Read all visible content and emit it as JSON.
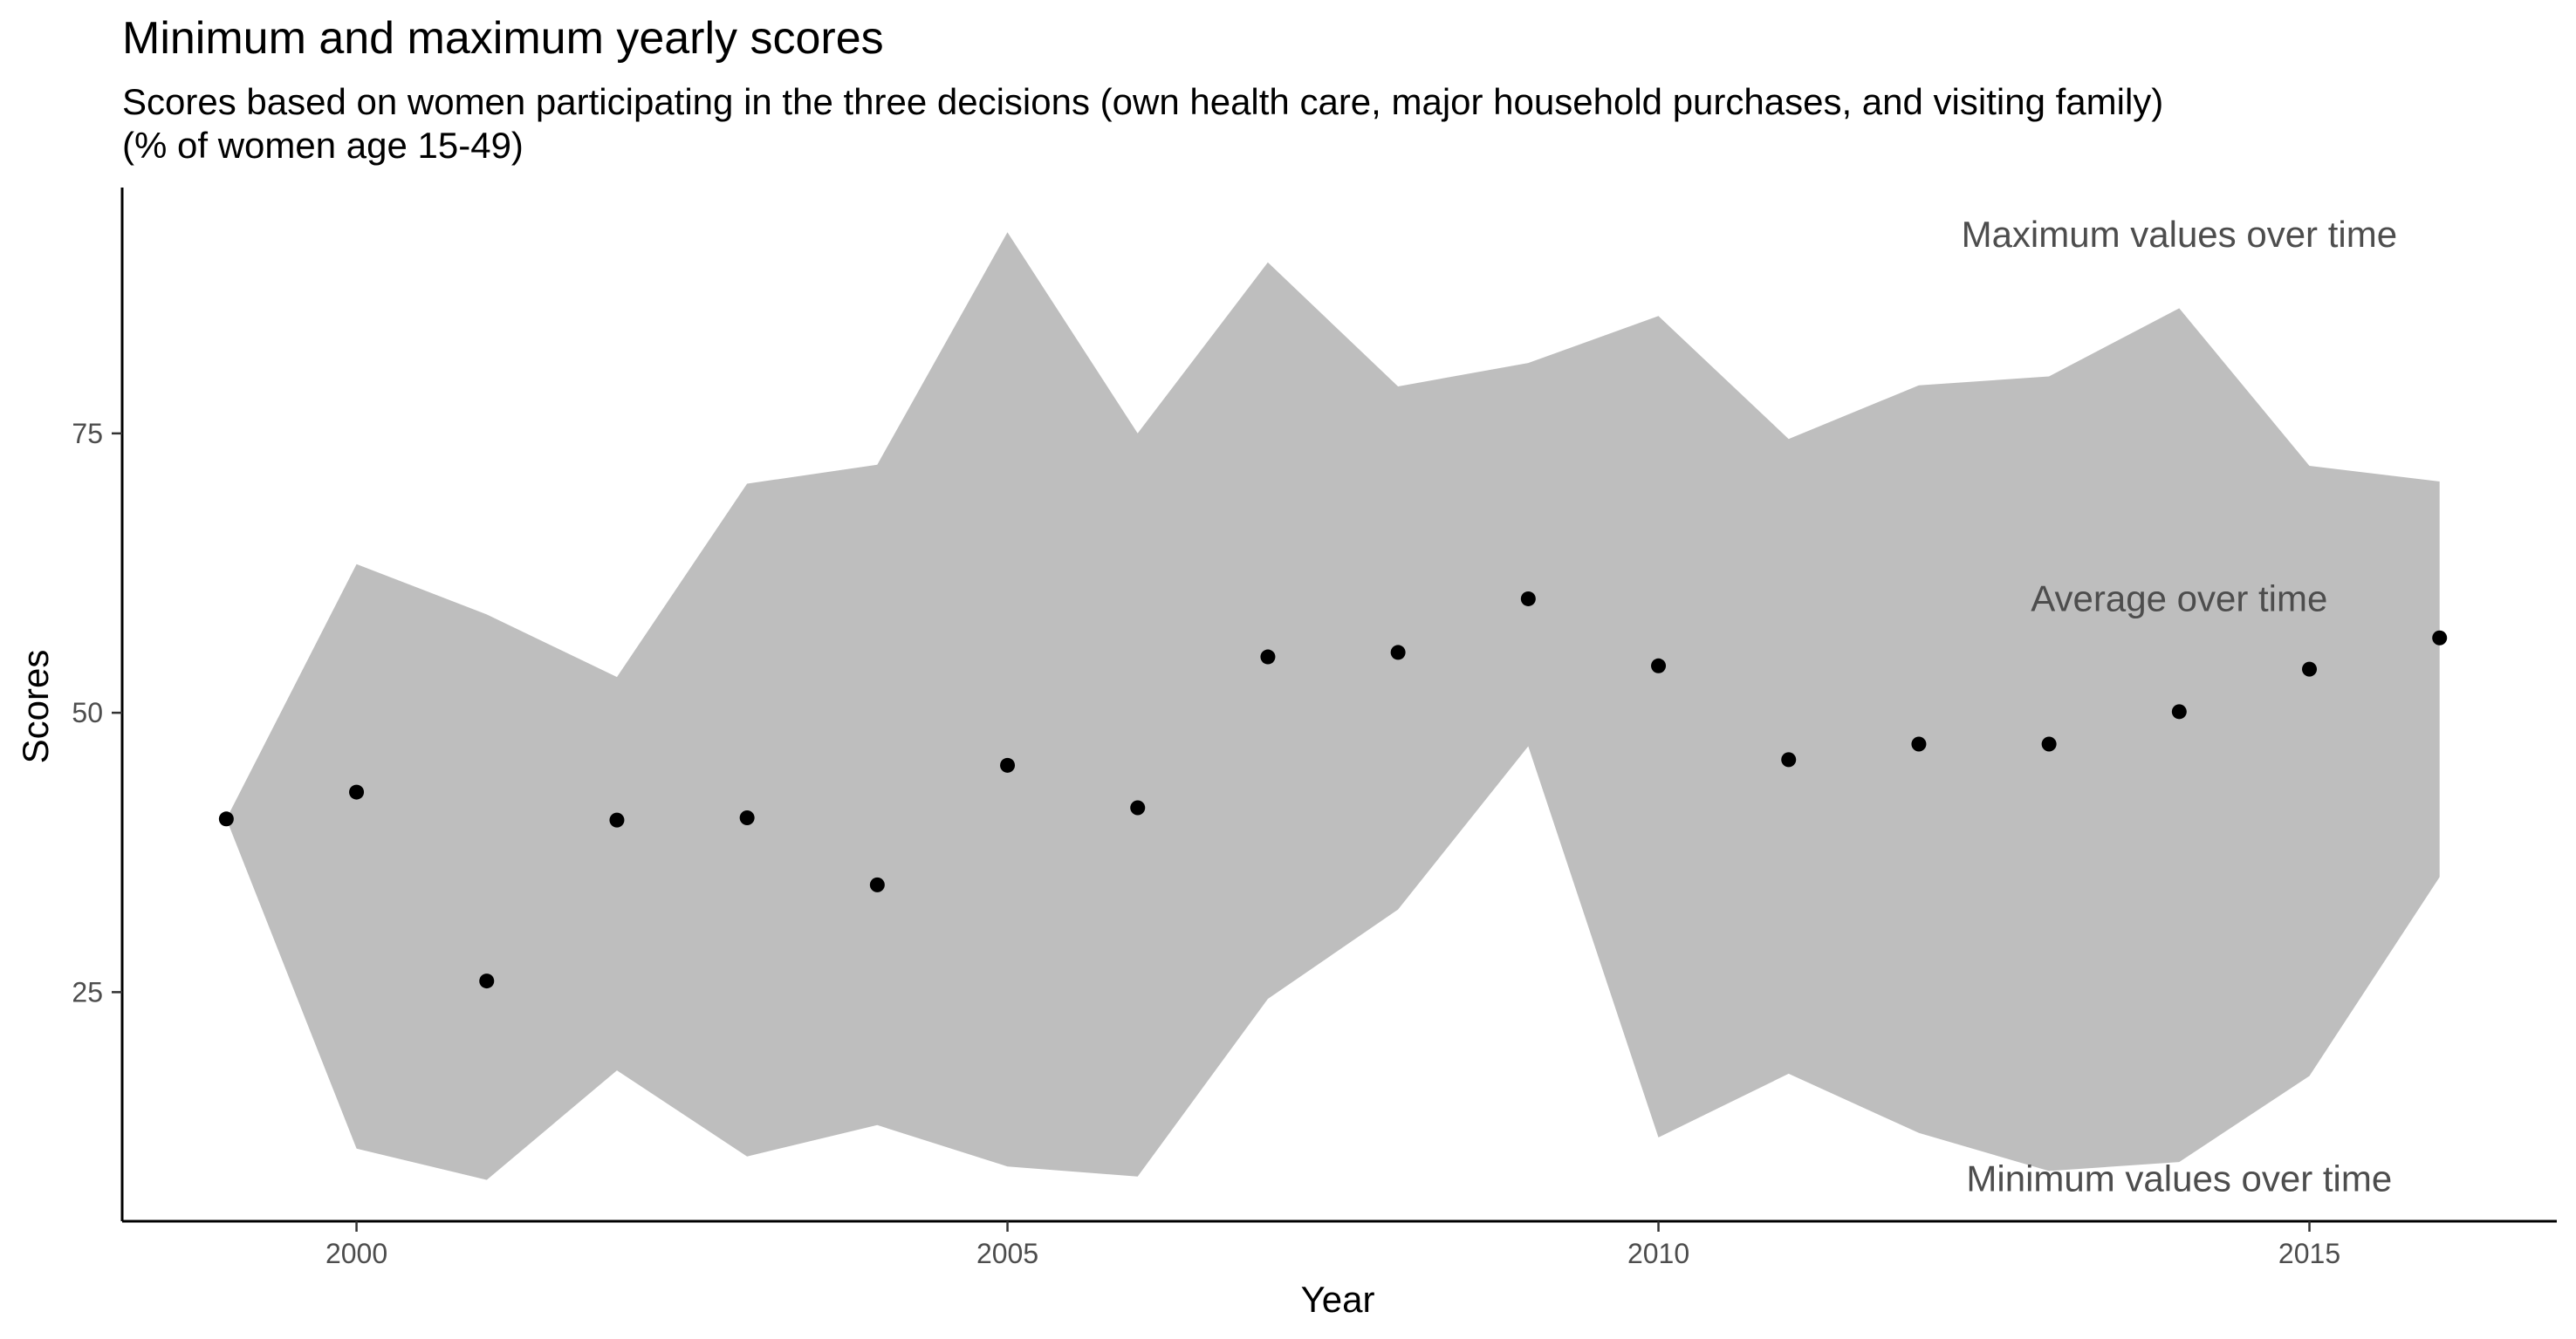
{
  "chart_data": {
    "type": "area",
    "title": "Minimum and maximum yearly scores",
    "subtitle": "Scores based on women participating in the three decisions (own health care, major household purchases, and visiting family)",
    "subtitle2": "(% of women age 15-49)",
    "xlabel": "Year",
    "ylabel": "Scores",
    "xlim": [
      1998.2,
      2016.9
    ],
    "ylim": [
      4.5,
      97
    ],
    "x_ticks": [
      2000,
      2005,
      2010,
      2015
    ],
    "y_ticks": [
      25,
      50,
      75
    ],
    "grid": false,
    "colors": {
      "ribbon": "#bebebe",
      "points": "#000000",
      "annotation": "#4d4d4d"
    },
    "x": [
      1999,
      2000,
      2001,
      2002,
      2003,
      2004,
      2005,
      2006,
      2007,
      2008,
      2009,
      2010,
      2011,
      2012,
      2013,
      2014,
      2015,
      2016
    ],
    "series": [
      {
        "values": [
          40.5,
          63.3,
          58.8,
          53.2,
          70.5,
          72.2,
          93.0,
          75.0,
          90.3,
          79.2,
          81.3,
          85.5,
          74.5,
          79.3,
          80.1,
          86.2,
          72.1,
          70.7
        ]
      },
      {
        "values": [
          40.5,
          11.0,
          8.2,
          18.0,
          10.3,
          13.1,
          9.4,
          8.5,
          24.4,
          32.4,
          47.0,
          12.0,
          17.7,
          12.4,
          9.0,
          9.8,
          17.5,
          35.3
        ]
      },
      {
        "values": [
          40.5,
          42.9,
          26.0,
          40.4,
          40.6,
          34.6,
          45.3,
          41.5,
          55.0,
          55.4,
          60.2,
          54.2,
          45.8,
          47.2,
          47.2,
          50.1,
          53.9,
          56.7
        ]
      }
    ],
    "annotations": [
      {
        "text": "Maximum values over time",
        "x": 2014.0,
        "y": 91.7
      },
      {
        "text": "Average over time",
        "x": 2014.0,
        "y": 59.1
      },
      {
        "text": "Minimum values over time",
        "x": 2014.0,
        "y": 7.2
      }
    ]
  }
}
